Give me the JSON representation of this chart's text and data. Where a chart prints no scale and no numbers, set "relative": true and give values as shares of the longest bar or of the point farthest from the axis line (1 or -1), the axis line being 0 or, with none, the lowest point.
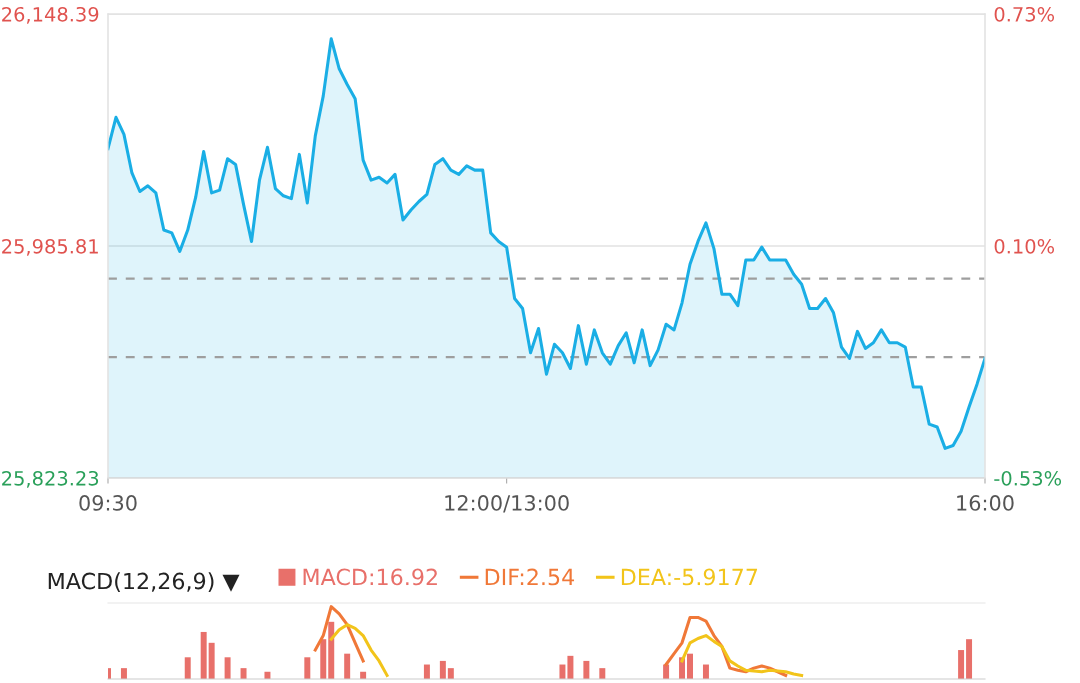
{
  "chart_data": [
    {
      "type": "area",
      "categories": [
        "09:30",
        null,
        null,
        null,
        null,
        null,
        null,
        null,
        null,
        null,
        null,
        null,
        null,
        null,
        null,
        null,
        null,
        null,
        null,
        null,
        null,
        null,
        null,
        null,
        null,
        null,
        null,
        null,
        null,
        null,
        null,
        null,
        null,
        null,
        null,
        null,
        null,
        null,
        null,
        null,
        null,
        null,
        null,
        null,
        null,
        null,
        null,
        null,
        null,
        null,
        "12:00/13:00",
        null,
        null,
        null,
        null,
        null,
        null,
        null,
        null,
        null,
        null,
        null,
        null,
        null,
        null,
        null,
        null,
        null,
        null,
        null,
        null,
        null,
        null,
        null,
        null,
        null,
        null,
        null,
        null,
        null,
        null,
        null,
        null,
        null,
        null,
        null,
        null,
        null,
        null,
        null,
        null,
        null,
        null,
        null,
        null,
        null,
        null,
        null,
        null,
        null,
        null,
        null,
        null,
        null,
        null,
        null,
        null,
        null,
        null,
        null,
        "16:00"
      ],
      "series": [
        {
          "color": "#1aaee5",
          "values": [
            26054,
            26076,
            26064,
            26037,
            26024,
            26028,
            26023,
            25997,
            25995,
            25982,
            25997,
            26020,
            26052,
            26023,
            26025,
            26047,
            26043,
            26015,
            25989,
            26032,
            26055,
            26026,
            26021,
            26019,
            26050,
            26016,
            26063,
            26091,
            26131,
            26110,
            26099,
            26089,
            26046,
            26032,
            26034,
            26030,
            26036,
            26004,
            26011,
            26017,
            26022,
            26043,
            26047,
            26039,
            26036,
            26042,
            26039,
            26039,
            25995,
            25989,
            25985,
            25949,
            25942,
            25911,
            25928,
            25896,
            25917,
            25911,
            25900,
            25930,
            25903,
            25927,
            25911,
            25903,
            25916,
            25925,
            25904,
            25927,
            25902,
            25913,
            25931,
            25927,
            25946,
            25973,
            25989,
            26002,
            25984,
            25952,
            25952,
            25944,
            25976,
            25976,
            25985,
            25976,
            25976,
            25976,
            25966,
            25959,
            25942,
            25942,
            25949,
            25939,
            25915,
            25907,
            25926,
            25914,
            25918,
            25927,
            25918,
            25918,
            25915,
            25887,
            25887,
            25861,
            25859,
            25844,
            25846,
            25856,
            25873,
            25889,
            25907
          ]
        }
      ],
      "ylim": [
        25823.23,
        26148.39
      ],
      "yticks": [
        {
          "value": 25823.23,
          "label": "25,823.23"
        },
        {
          "value": 25985.81,
          "label": "25,985.81"
        },
        {
          "value": 26148.39,
          "label": "26,148.39"
        }
      ],
      "y2lim": [
        -0.53,
        0.73
      ],
      "y2ticks": [
        {
          "value": -0.53,
          "label": "-0.53%"
        },
        {
          "value": 0.1,
          "label": "0.10%"
        },
        {
          "value": 0.73,
          "label": "0.73%"
        }
      ],
      "ref_lines": [
        {
          "axis": "y",
          "value": 25963,
          "color": "#9e9e9e",
          "line_style": "dashed"
        },
        {
          "axis": "y",
          "value": 25908,
          "color": "#9e9e9e",
          "line_style": "dashed"
        }
      ],
      "grid": "y"
    },
    {
      "type": "bar",
      "title": "MACD(12,26,9) ▼",
      "relative": true,
      "legend": "top",
      "categories": [
        null,
        null,
        null,
        null,
        null,
        null,
        null,
        null,
        null,
        null,
        null,
        null,
        null,
        null,
        null,
        null,
        null,
        null,
        null,
        null,
        null,
        null,
        null,
        null,
        null,
        null,
        null,
        null,
        null,
        null,
        null,
        null,
        null,
        null,
        null,
        null,
        null,
        null,
        null,
        null,
        null,
        null,
        null,
        null,
        null,
        null,
        null,
        null,
        null,
        null,
        null,
        null,
        null,
        null,
        null,
        null,
        null,
        null,
        null,
        null,
        null,
        null,
        null,
        null,
        null,
        null,
        null,
        null,
        null,
        null,
        null,
        null,
        null,
        null,
        null,
        null,
        null,
        null,
        null,
        null,
        null,
        null,
        null,
        null,
        null,
        null,
        null,
        null,
        null,
        null,
        null,
        null,
        null,
        null,
        null,
        null,
        null,
        null,
        null,
        null,
        null,
        null,
        null,
        null,
        null,
        null,
        null,
        null,
        null,
        null,
        null
      ],
      "series": [
        {
          "name": "MACD:16.92",
          "type": "bar",
          "color": "#e8706a",
          "values": [
            0.15,
            null,
            0.15,
            null,
            null,
            null,
            null,
            null,
            null,
            null,
            0.3,
            null,
            0.65,
            0.5,
            null,
            0.3,
            null,
            0.15,
            null,
            null,
            0.1,
            null,
            null,
            null,
            null,
            0.3,
            null,
            0.55,
            0.79,
            null,
            0.35,
            null,
            0.1,
            null,
            null,
            null,
            null,
            null,
            null,
            null,
            0.2,
            null,
            0.25,
            0.15,
            null,
            null,
            null,
            null,
            null,
            null,
            null,
            null,
            null,
            null,
            null,
            null,
            null,
            0.2,
            0.32,
            null,
            0.25,
            null,
            0.15,
            null,
            null,
            null,
            null,
            null,
            null,
            null,
            0.2,
            null,
            0.3,
            0.35,
            null,
            0.2,
            null,
            null,
            null,
            null,
            null,
            null,
            null,
            null,
            null,
            null,
            null,
            null,
            null,
            null,
            null,
            null,
            null,
            null,
            null,
            null,
            null,
            null,
            null,
            null,
            null,
            null,
            null,
            null,
            null,
            null,
            null,
            0.4,
            0.55,
            null,
            null
          ]
        },
        {
          "name": "DIF:2.54",
          "type": "line",
          "color": "#f07838",
          "values": [
            null,
            null,
            null,
            null,
            null,
            null,
            null,
            null,
            null,
            null,
            null,
            null,
            null,
            null,
            null,
            null,
            null,
            null,
            null,
            null,
            null,
            null,
            null,
            null,
            null,
            null,
            0.4,
            0.6,
            1.0,
            0.9,
            0.75,
            0.5,
            0.25,
            null,
            null,
            null,
            null,
            null,
            null,
            null,
            null,
            null,
            null,
            null,
            null,
            null,
            null,
            null,
            null,
            null,
            null,
            null,
            null,
            null,
            null,
            null,
            null,
            null,
            null,
            null,
            null,
            null,
            null,
            null,
            null,
            null,
            null,
            null,
            null,
            null,
            0.2,
            0.35,
            0.5,
            0.85,
            0.85,
            0.8,
            0.6,
            0.45,
            0.15,
            0.12,
            0.1,
            0.15,
            0.18,
            0.15,
            0.1,
            0.05,
            null,
            null,
            null,
            null,
            null,
            null,
            null,
            null,
            null,
            null,
            null,
            null,
            null,
            null,
            null,
            null,
            null,
            null,
            null,
            null,
            null,
            null,
            null,
            null,
            null
          ]
        },
        {
          "name": "DEA:-5.9177",
          "type": "line",
          "color": "#f2c41a",
          "values": [
            null,
            null,
            null,
            null,
            null,
            null,
            null,
            null,
            null,
            null,
            null,
            null,
            null,
            null,
            null,
            null,
            null,
            null,
            null,
            null,
            null,
            null,
            null,
            null,
            null,
            null,
            null,
            null,
            0.55,
            0.68,
            0.75,
            0.7,
            0.6,
            0.4,
            0.25,
            0.05,
            null,
            null,
            null,
            null,
            null,
            null,
            null,
            null,
            null,
            null,
            null,
            null,
            null,
            null,
            null,
            null,
            null,
            null,
            null,
            null,
            null,
            null,
            null,
            null,
            null,
            null,
            null,
            null,
            null,
            null,
            null,
            null,
            null,
            null,
            null,
            null,
            0.25,
            0.5,
            0.56,
            0.6,
            0.52,
            0.45,
            0.25,
            0.18,
            0.12,
            0.11,
            0.1,
            0.12,
            0.11,
            0.1,
            0.07,
            0.05,
            null,
            null,
            null,
            null,
            null,
            null,
            null,
            null,
            null,
            null,
            null,
            null,
            null,
            null,
            null,
            null,
            null,
            null,
            null,
            null,
            null,
            null,
            null
          ]
        }
      ]
    }
  ]
}
